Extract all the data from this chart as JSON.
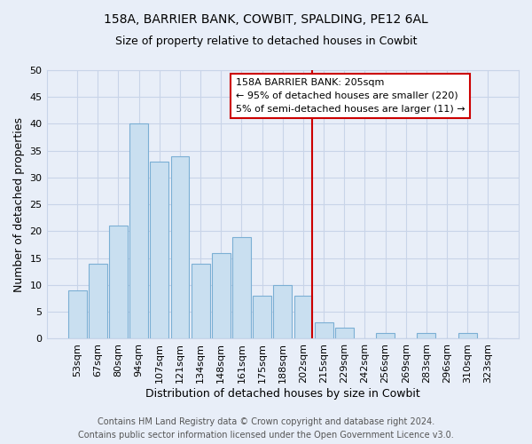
{
  "title1": "158A, BARRIER BANK, COWBIT, SPALDING, PE12 6AL",
  "title2": "Size of property relative to detached houses in Cowbit",
  "xlabel": "Distribution of detached houses by size in Cowbit",
  "ylabel": "Number of detached properties",
  "footer1": "Contains HM Land Registry data © Crown copyright and database right 2024.",
  "footer2": "Contains public sector information licensed under the Open Government Licence v3.0.",
  "bar_labels": [
    "53sqm",
    "67sqm",
    "80sqm",
    "94sqm",
    "107sqm",
    "121sqm",
    "134sqm",
    "148sqm",
    "161sqm",
    "175sqm",
    "188sqm",
    "202sqm",
    "215sqm",
    "229sqm",
    "242sqm",
    "256sqm",
    "269sqm",
    "283sqm",
    "296sqm",
    "310sqm",
    "323sqm"
  ],
  "bar_values": [
    9,
    14,
    21,
    40,
    33,
    34,
    14,
    16,
    19,
    8,
    10,
    8,
    3,
    2,
    0,
    1,
    0,
    1,
    0,
    1,
    0
  ],
  "bar_color": "#c9dff0",
  "bar_edge_color": "#7bafd4",
  "vline_index": 11,
  "vline_color": "#cc0000",
  "ylim": [
    0,
    50
  ],
  "yticks": [
    0,
    5,
    10,
    15,
    20,
    25,
    30,
    35,
    40,
    45,
    50
  ],
  "annotation_title": "158A BARRIER BANK: 205sqm",
  "annotation_line1": "← 95% of detached houses are smaller (220)",
  "annotation_line2": "5% of semi-detached houses are larger (11) →",
  "annotation_box_edgecolor": "#cc0000",
  "bg_color": "#e8eef8",
  "grid_color": "#c8d4e8",
  "title1_fontsize": 10,
  "title2_fontsize": 9,
  "xlabel_fontsize": 9,
  "ylabel_fontsize": 9,
  "tick_fontsize": 8,
  "annotation_fontsize": 8,
  "footer_fontsize": 7
}
